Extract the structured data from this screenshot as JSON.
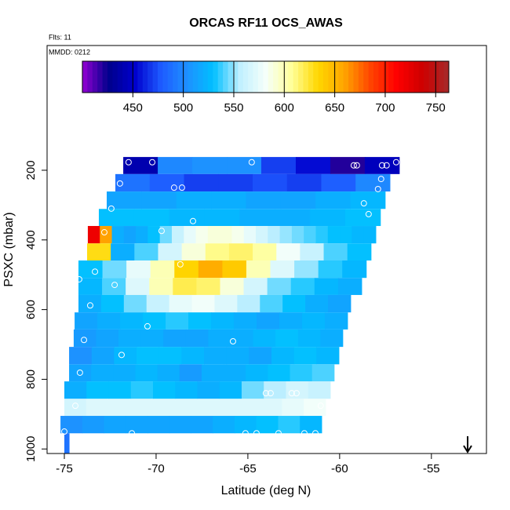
{
  "chart_data": {
    "type": "curtain",
    "title": "ORCAS RF11 OCS_AWAS",
    "subtitle": "Flts: 11",
    "annotation": "MMDD: 0212",
    "xlabel": "Latitude (deg N)",
    "ylabel": "PSXC (mbar)",
    "xlim": [
      -75.94,
      -52.0
    ],
    "xticks": [
      -75,
      -70,
      -65,
      -60,
      -55
    ],
    "ylim": [
      1013,
      -158
    ],
    "yticks": [
      200,
      400,
      600,
      800,
      1000
    ],
    "colorbar_lim": [
      400,
      763
    ],
    "colorbar_ticks": [
      450,
      500,
      550,
      600,
      650,
      700,
      750
    ],
    "colormap": [
      "#9400d3",
      "#00008b",
      "#0000cd",
      "#1e5aff",
      "#1e90ff",
      "#00bfff",
      "#bfefff",
      "#f5fffa",
      "#ffff99",
      "#ffd700",
      "#ffa500",
      "#ff4500",
      "#ff0000",
      "#cd0000",
      "#a52a2a"
    ],
    "marker_color": "#ffffff",
    "strips": [
      {
        "lat": [
          -71.79,
          -56.75
        ],
        "p": [
          162,
          211
        ],
        "values": [
          440,
          500,
          505,
          505,
          470,
          455,
          420,
          445
        ]
      },
      {
        "lat": [
          -72.22,
          -57.26
        ],
        "p": [
          211,
          261
        ],
        "values": [
          490,
          480,
          470,
          470,
          475,
          470,
          480,
          500
        ]
      },
      {
        "lat": [
          -72.69,
          -57.52
        ],
        "p": [
          261,
          311
        ],
        "values": [
          515,
          515,
          520,
          520,
          515,
          515,
          520,
          525
        ]
      },
      {
        "lat": [
          -73.12,
          -57.78
        ],
        "p": [
          311,
          360
        ],
        "values": [
          530,
          530,
          525,
          525,
          520,
          520,
          525,
          530
        ]
      },
      {
        "lat": [
          -73.72,
          -58.03
        ],
        "p": [
          360,
          410
        ],
        "values": [
          720,
          660,
          520,
          515,
          520,
          530,
          545,
          560,
          575,
          585,
          590,
          590,
          585,
          575,
          565,
          555,
          550,
          545,
          540,
          535,
          530,
          530,
          525,
          525
        ]
      },
      {
        "lat": [
          -73.76,
          -58.29
        ],
        "p": [
          410,
          459
        ],
        "values": [
          630,
          520,
          540,
          565,
          590,
          610,
          615,
          605,
          580,
          560,
          540,
          530
        ]
      },
      {
        "lat": [
          -74.23,
          -58.55
        ],
        "p": [
          459,
          509
        ],
        "values": [
          530,
          545,
          575,
          600,
          635,
          655,
          640,
          600,
          570,
          550,
          535,
          525
        ]
      },
      {
        "lat": [
          -74.23,
          -58.8
        ],
        "p": [
          509,
          558
        ],
        "values": [
          525,
          540,
          570,
          600,
          620,
          615,
          590,
          565,
          545,
          535,
          525,
          520
        ]
      },
      {
        "lat": [
          -74.23,
          -59.4
        ],
        "p": [
          558,
          608
        ],
        "values": [
          520,
          530,
          545,
          560,
          575,
          580,
          570,
          555,
          540,
          530,
          520,
          515
        ]
      },
      {
        "lat": [
          -74.44,
          -59.57
        ],
        "p": [
          608,
          657
        ],
        "values": [
          515,
          520,
          525,
          530,
          535,
          530,
          525,
          520,
          515,
          520,
          525,
          520
        ]
      },
      {
        "lat": [
          -74.49,
          -59.83
        ],
        "p": [
          657,
          707
        ],
        "values": [
          510,
          515,
          520,
          520,
          515,
          515,
          520,
          520,
          525,
          530,
          525,
          520
        ]
      },
      {
        "lat": [
          -74.74,
          -60.04
        ],
        "p": [
          707,
          757
        ],
        "values": [
          505,
          515,
          525,
          530,
          530,
          525,
          520,
          520,
          515,
          525,
          530,
          525
        ]
      },
      {
        "lat": [
          -74.74,
          -60.3
        ],
        "p": [
          757,
          806
        ],
        "values": [
          515,
          520,
          520,
          525,
          520,
          510,
          520,
          520,
          525,
          530,
          535,
          540
        ]
      },
      {
        "lat": [
          -75.0,
          -60.51
        ],
        "p": [
          806,
          856
        ],
        "values": [
          520,
          530,
          530,
          535,
          530,
          525,
          520,
          525,
          545,
          555,
          565,
          560
        ]
      },
      {
        "lat": [
          -75.0,
          -60.77
        ],
        "p": [
          856,
          905
        ],
        "values": [
          565,
          570,
          570,
          570,
          570,
          570,
          570,
          570,
          570,
          570,
          575,
          580
        ]
      },
      {
        "lat": [
          -75.21,
          -60.98
        ],
        "p": [
          905,
          955
        ],
        "values": [
          505,
          510,
          515,
          515,
          515,
          515,
          515,
          520,
          525,
          530,
          535,
          525
        ]
      },
      {
        "lat": [
          -75.0,
          -74.74
        ],
        "p": [
          955,
          1013
        ],
        "values": [
          490
        ]
      }
    ],
    "samples": {
      "x": [
        -71.5,
        -70.21,
        -64.79,
        -59.23,
        -59.06,
        -57.69,
        -57.44,
        -56.92,
        -71.97,
        -57.74,
        -69.02,
        -68.59,
        -57.91,
        -58.68,
        -72.44,
        -58.42,
        -73.33,
        -67.99,
        -69.7,
        -72.82,
        -68.68,
        -73.33,
        -74.19,
        -72.26,
        -73.59,
        -70.47,
        -65.81,
        -73.93,
        -71.88,
        -74.15,
        -74.4,
        -64.02,
        -63.76,
        -62.61,
        -62.35,
        -61.03,
        -75.0,
        -71.32,
        -65.13,
        -64.53,
        -63.33,
        -61.92,
        -61.32
      ],
      "y": [
        177,
        177,
        177,
        186,
        186,
        186,
        186,
        177,
        238,
        225,
        250,
        250,
        254,
        295,
        310,
        326,
        317,
        346,
        374,
        378,
        470,
        491,
        513,
        529,
        588,
        648,
        691,
        687,
        730,
        781,
        876,
        840,
        840,
        840,
        840,
        876,
        950,
        955,
        955,
        955,
        955,
        955,
        955
      ]
    }
  }
}
